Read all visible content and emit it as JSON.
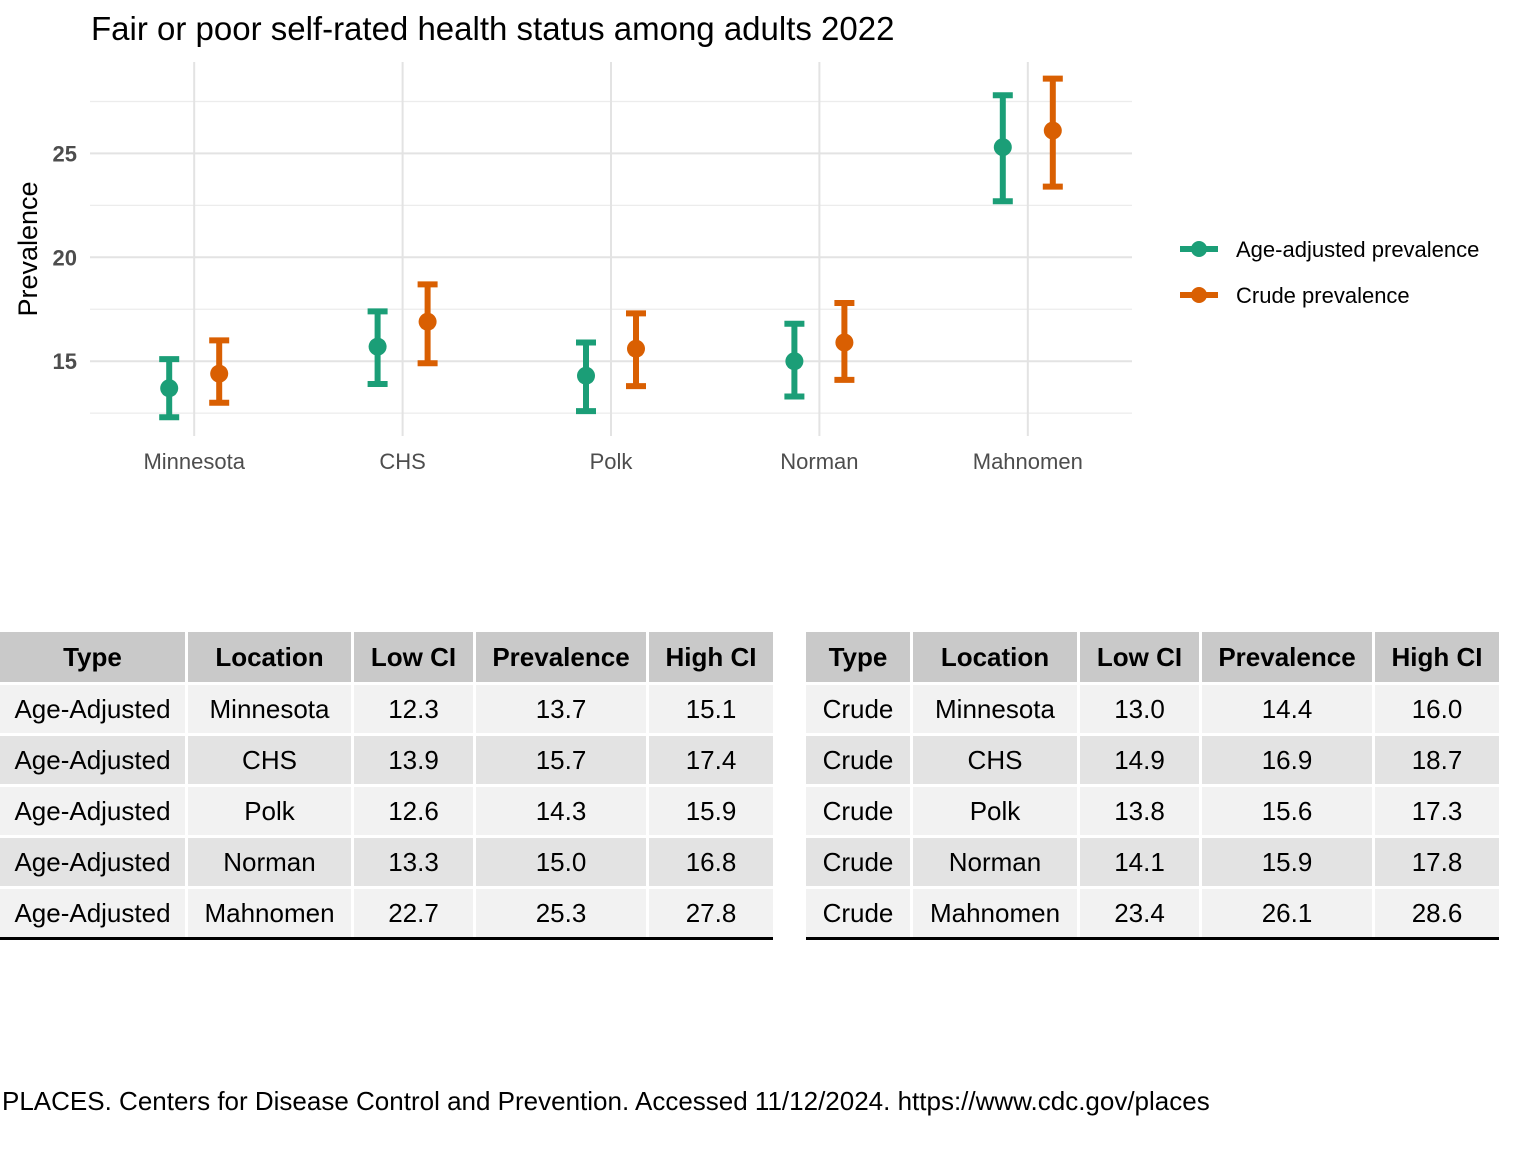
{
  "title": "Fair or poor self-rated health status among adults 2022",
  "chart_data": {
    "type": "scatter",
    "title": "Fair or poor self-rated health status among adults 2022",
    "ylabel": "Prevalence",
    "xlabel": "",
    "categories": [
      "Minnesota",
      "CHS",
      "Polk",
      "Norman",
      "Mahnomen"
    ],
    "y_ticks": [
      15,
      20,
      25
    ],
    "ylim": [
      11.4,
      29.4
    ],
    "grid": true,
    "legend_position": "right",
    "series": [
      {
        "name": "Age-adjusted prevalence",
        "color": "#1b9e77",
        "values": [
          13.7,
          15.7,
          14.3,
          15.0,
          25.3
        ],
        "low": [
          12.3,
          13.9,
          12.6,
          13.3,
          22.7
        ],
        "high": [
          15.1,
          17.4,
          15.9,
          16.8,
          27.8
        ]
      },
      {
        "name": "Crude prevalence",
        "color": "#d95f02",
        "values": [
          14.4,
          16.9,
          15.6,
          15.9,
          26.1
        ],
        "low": [
          13.0,
          14.9,
          13.8,
          14.1,
          23.4
        ],
        "high": [
          16.0,
          18.7,
          17.3,
          17.8,
          28.6
        ]
      }
    ]
  },
  "tables": {
    "headers": [
      "Type",
      "Location",
      "Low CI",
      "Prevalence",
      "High CI"
    ],
    "age_adjusted": [
      [
        "Age-Adjusted",
        "Minnesota",
        "12.3",
        "13.7",
        "15.1"
      ],
      [
        "Age-Adjusted",
        "CHS",
        "13.9",
        "15.7",
        "17.4"
      ],
      [
        "Age-Adjusted",
        "Polk",
        "12.6",
        "14.3",
        "15.9"
      ],
      [
        "Age-Adjusted",
        "Norman",
        "13.3",
        "15.0",
        "16.8"
      ],
      [
        "Age-Adjusted",
        "Mahnomen",
        "22.7",
        "25.3",
        "27.8"
      ]
    ],
    "crude": [
      [
        "Crude",
        "Minnesota",
        "13.0",
        "14.4",
        "16.0"
      ],
      [
        "Crude",
        "CHS",
        "14.9",
        "16.9",
        "18.7"
      ],
      [
        "Crude",
        "Polk",
        "13.8",
        "15.6",
        "17.3"
      ],
      [
        "Crude",
        "Norman",
        "14.1",
        "15.9",
        "17.8"
      ],
      [
        "Crude",
        "Mahnomen",
        "23.4",
        "26.1",
        "28.6"
      ]
    ]
  },
  "source": "PLACES. Centers for Disease Control and Prevention. Accessed 11/12/2024. https://www.cdc.gov/places"
}
